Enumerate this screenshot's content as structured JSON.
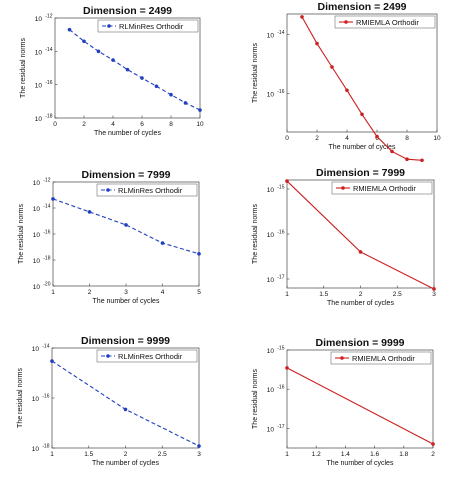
{
  "chart_data": [
    {
      "type": "line",
      "title": "Dimension = 2499",
      "xlabel": "The number of cycles",
      "ylabel": "The residual norms",
      "xlim": [
        0,
        10
      ],
      "xticks": [
        0,
        2,
        4,
        6,
        8,
        10
      ],
      "xtick_labels": [
        "0",
        "2",
        "4",
        "6",
        "8",
        "10"
      ],
      "yscale": "log",
      "ylim_exp": [
        -18,
        -12
      ],
      "yticks_exp": [
        -18,
        -16,
        -14,
        -12
      ],
      "ytick_labels": [
        {
          "base": "10",
          "exp": "-18"
        },
        {
          "base": "10",
          "exp": "-16"
        },
        {
          "base": "10",
          "exp": "-14"
        },
        {
          "base": "10",
          "exp": "-12"
        }
      ],
      "legend": "top-right",
      "series": [
        {
          "name": "RLMinRes Orthodir",
          "color": "#1f3fbf",
          "dash": "dashed",
          "x": [
            1,
            2,
            3,
            4,
            5,
            6,
            7,
            8,
            9,
            10
          ],
          "y": [
            2e-13,
            4e-14,
            1e-14,
            3e-15,
            8e-16,
            2.5e-16,
            8e-17,
            2.5e-17,
            8e-18,
            3e-18
          ]
        }
      ]
    },
    {
      "type": "line",
      "title": "Dimension = 2499",
      "xlabel": "The number of cycles",
      "ylabel": "The residual norms",
      "xlim": [
        0,
        10
      ],
      "xticks": [
        0,
        2,
        4,
        6,
        8,
        10
      ],
      "xtick_labels": [
        "0",
        "2",
        "4",
        "6",
        "8",
        "10"
      ],
      "yscale": "log",
      "ylim_exp": [
        -17.3,
        -13.3
      ],
      "yticks_exp": [
        -16,
        -14
      ],
      "ytick_labels": [
        {
          "base": "10",
          "exp": "-16"
        },
        {
          "base": "10",
          "exp": "-14"
        }
      ],
      "legend": "top-right",
      "series": [
        {
          "name": "RMIEMLA Orthodir",
          "color": "#cc2020",
          "dash": "solid",
          "x": [
            1,
            2,
            3,
            4,
            5,
            6,
            7,
            8,
            9
          ],
          "y": [
            4e-14,
            5e-15,
            8e-16,
            1.3e-16,
            2e-17,
            3.5e-18,
            1.1e-18,
            6e-19,
            5.5e-19
          ]
        }
      ]
    },
    {
      "type": "line",
      "title": "Dimension = 7999",
      "xlabel": "The number of cycles",
      "ylabel": "The residual norms",
      "xlim": [
        1,
        5
      ],
      "xticks": [
        1,
        2,
        3,
        4,
        5
      ],
      "xtick_labels": [
        "1",
        "2",
        "3",
        "4",
        "5"
      ],
      "yscale": "log",
      "ylim_exp": [
        -20,
        -12
      ],
      "yticks_exp": [
        -20,
        -18,
        -16,
        -14,
        -12
      ],
      "ytick_labels": [
        {
          "base": "10",
          "exp": "-20"
        },
        {
          "base": "10",
          "exp": "-18"
        },
        {
          "base": "10",
          "exp": "-16"
        },
        {
          "base": "10",
          "exp": "-14"
        },
        {
          "base": "10",
          "exp": "-12"
        }
      ],
      "legend": "top-right",
      "series": [
        {
          "name": "RLMinRes Orthodir",
          "color": "#1f3fbf",
          "dash": "dashed",
          "x": [
            1,
            2,
            3,
            4,
            5
          ],
          "y": [
            5e-14,
            5e-15,
            5e-16,
            2e-17,
            3e-18
          ]
        }
      ]
    },
    {
      "type": "line",
      "title": "Dimension = 7999",
      "xlabel": "The number of cycles",
      "ylabel": "The residual norms",
      "xlim": [
        1,
        3
      ],
      "xticks": [
        1,
        1.5,
        2,
        2.5,
        3
      ],
      "xtick_labels": [
        "1",
        "1.5",
        "2",
        "2.5",
        "3"
      ],
      "yscale": "log",
      "ylim_exp": [
        -17.2,
        -14.8
      ],
      "yticks_exp": [
        -17,
        -16,
        -15
      ],
      "ytick_labels": [
        {
          "base": "10",
          "exp": "-17"
        },
        {
          "base": "10",
          "exp": "-16"
        },
        {
          "base": "10",
          "exp": "-15"
        }
      ],
      "legend": "top-right",
      "series": [
        {
          "name": "RMIEMLA Orthodir",
          "color": "#cc2020",
          "dash": "solid",
          "x": [
            1,
            2,
            3
          ],
          "y": [
            1.5e-15,
            4e-17,
            6e-18
          ]
        }
      ]
    },
    {
      "type": "line",
      "title": "Dimension = 9999",
      "xlabel": "The number of cycles",
      "ylabel": "The residual norms",
      "xlim": [
        1,
        3
      ],
      "xticks": [
        1,
        1.5,
        2,
        2.5,
        3
      ],
      "xtick_labels": [
        "1",
        "1.5",
        "2",
        "2.5",
        "3"
      ],
      "yscale": "log",
      "ylim_exp": [
        -18,
        -14
      ],
      "yticks_exp": [
        -18,
        -16,
        -14
      ],
      "ytick_labels": [
        {
          "base": "10",
          "exp": "-18"
        },
        {
          "base": "10",
          "exp": "-16"
        },
        {
          "base": "10",
          "exp": "-14"
        }
      ],
      "legend": "top-right",
      "series": [
        {
          "name": "RLMinRes Orthodir",
          "color": "#1f3fbf",
          "dash": "dashed",
          "x": [
            1,
            2,
            3
          ],
          "y": [
            3e-15,
            3.5e-17,
            1.2e-18
          ]
        }
      ]
    },
    {
      "type": "line",
      "title": "Dimension = 9999",
      "xlabel": "The number of cycles",
      "ylabel": "The residual norms",
      "xlim": [
        1,
        2
      ],
      "xticks": [
        1,
        1.2,
        1.4,
        1.6,
        1.8,
        2
      ],
      "xtick_labels": [
        "1",
        "1.2",
        "1.4",
        "1.6",
        "1.8",
        "2"
      ],
      "yscale": "log",
      "ylim_exp": [
        -17.5,
        -15
      ],
      "yticks_exp": [
        -17,
        -16,
        -15
      ],
      "ytick_labels": [
        {
          "base": "10",
          "exp": "-17"
        },
        {
          "base": "10",
          "exp": "-16"
        },
        {
          "base": "10",
          "exp": "-15"
        }
      ],
      "legend": "top-right",
      "series": [
        {
          "name": "RMIEMLA Orthodir",
          "color": "#cc2020",
          "dash": "solid",
          "x": [
            1,
            2
          ],
          "y": [
            3.5e-16,
            4e-18
          ]
        }
      ]
    }
  ]
}
